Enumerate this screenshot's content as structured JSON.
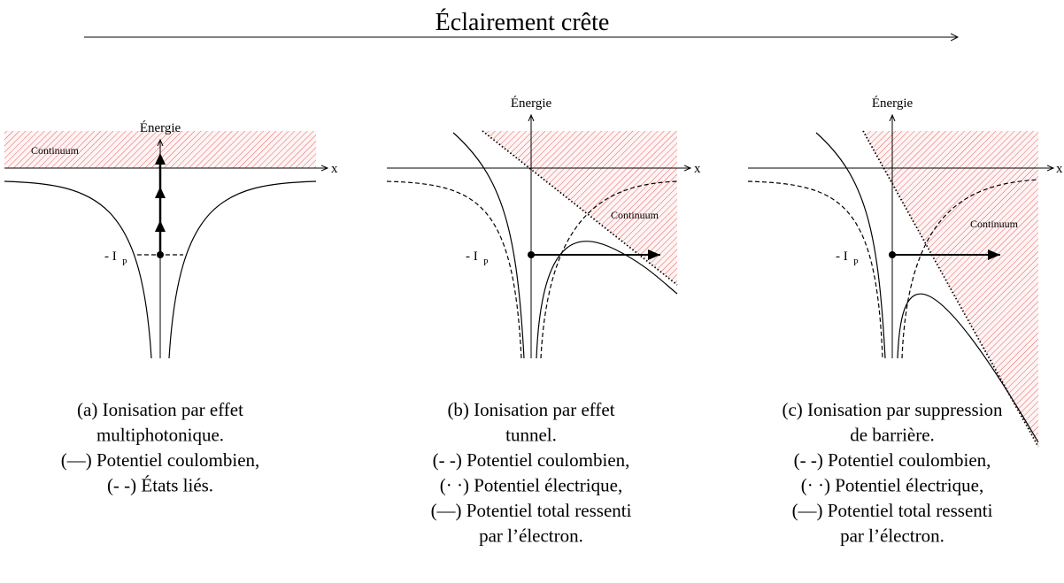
{
  "header": {
    "title": "Éclairement crête"
  },
  "panels": [
    {
      "y_axis_label": "Énergie",
      "x_axis_label": "x",
      "region_label": "Continuum",
      "level_label": "- I",
      "level_subscript": "P",
      "caption": [
        "(a) Ionisation par effet",
        "multiphotonique.",
        "(—) Potentiel coulombien,",
        "(- -) États liés."
      ]
    },
    {
      "y_axis_label": "Énergie",
      "x_axis_label": "x",
      "region_label": "Continuum",
      "level_label": "- I",
      "level_subscript": "P",
      "caption": [
        "(b) Ionisation par effet",
        "tunnel.",
        "(- -) Potentiel coulombien,",
        "(· ·) Potentiel électrique,",
        "(—) Potentiel total ressenti",
        "par l’électron."
      ]
    },
    {
      "y_axis_label": "Énergie",
      "x_axis_label": "x",
      "region_label": "Continuum",
      "level_label": "- I",
      "level_subscript": "P",
      "caption": [
        "(c) Ionisation par suppression",
        "de barrière.",
        "(- -) Potentiel coulombien,",
        "(· ·) Potentiel électrique,",
        "(—) Potentiel total ressenti",
        "par l’électron."
      ]
    }
  ]
}
